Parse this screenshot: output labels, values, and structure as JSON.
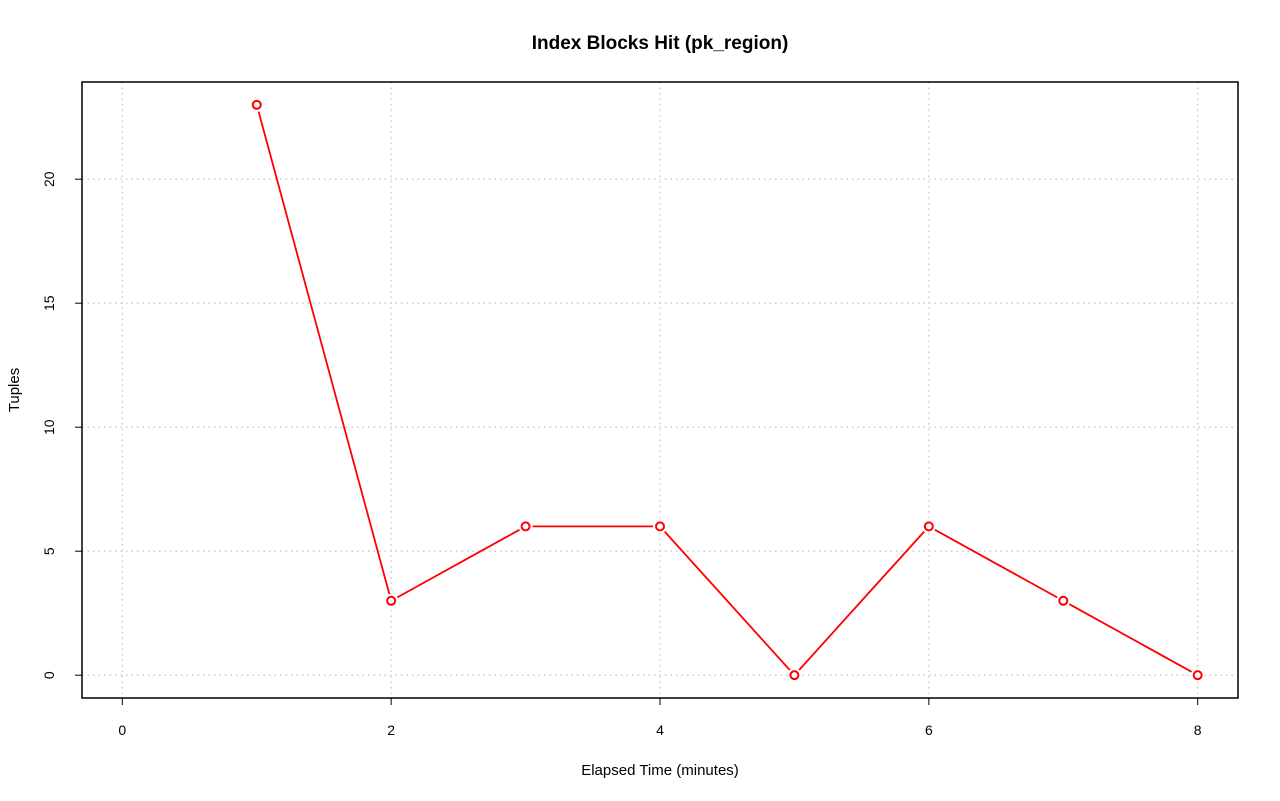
{
  "chart_data": {
    "type": "line",
    "title": "Index Blocks Hit (pk_region)",
    "xlabel": "Elapsed Time (minutes)",
    "ylabel": "Tuples",
    "xlim": [
      -0.3,
      8.3
    ],
    "ylim": [
      -0.92,
      23.92
    ],
    "xticks": [
      0,
      2,
      4,
      6,
      8
    ],
    "yticks": [
      0,
      5,
      10,
      15,
      20
    ],
    "xgrid": [
      0,
      2,
      4,
      6,
      8
    ],
    "ygrid": [
      0,
      5,
      10,
      15,
      20
    ],
    "grid": true,
    "legend": "none",
    "series": [
      {
        "color": "#ff0000",
        "x": [
          1,
          2,
          3,
          4,
          5,
          6,
          7,
          8
        ],
        "y": [
          23,
          3,
          6,
          6,
          0,
          6,
          3,
          0
        ]
      }
    ]
  }
}
